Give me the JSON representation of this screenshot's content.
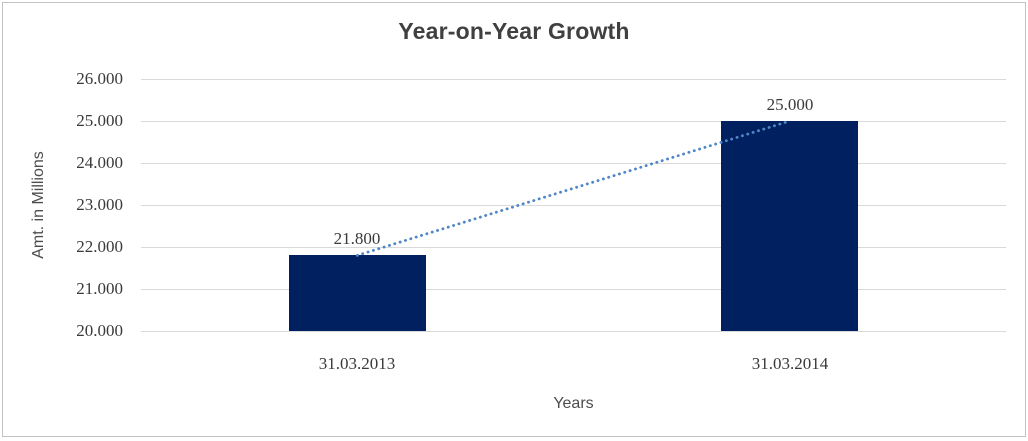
{
  "window": {
    "background": "#ffffff",
    "frame_border_color": "#c3c3c3"
  },
  "chart_data": {
    "type": "bar",
    "title": "Year-on-Year Growth",
    "xlabel": "Years",
    "ylabel": "Amt. in Millions",
    "categories": [
      "31.03.2013",
      "31.03.2014"
    ],
    "values": [
      21800,
      25000
    ],
    "value_labels": [
      "21.800",
      "25.000"
    ],
    "ylim": [
      20000,
      26000
    ],
    "y_ticks": [
      20000,
      21000,
      22000,
      23000,
      24000,
      25000,
      26000
    ],
    "y_tick_labels": [
      "20.000",
      "21.000",
      "22.000",
      "23.000",
      "24.000",
      "25.000",
      "26.000"
    ],
    "grid": true,
    "legend": false,
    "trendline": {
      "style": "dotted",
      "from_category": "31.03.2013",
      "to_category": "31.03.2014"
    },
    "colors": {
      "bar": "#002060",
      "trendline": "#4e86c8",
      "gridline": "#d9d9d9",
      "title_text": "#404040",
      "label_text": "#3a3a3a",
      "axis_title_text": "#4d4d4d"
    }
  }
}
